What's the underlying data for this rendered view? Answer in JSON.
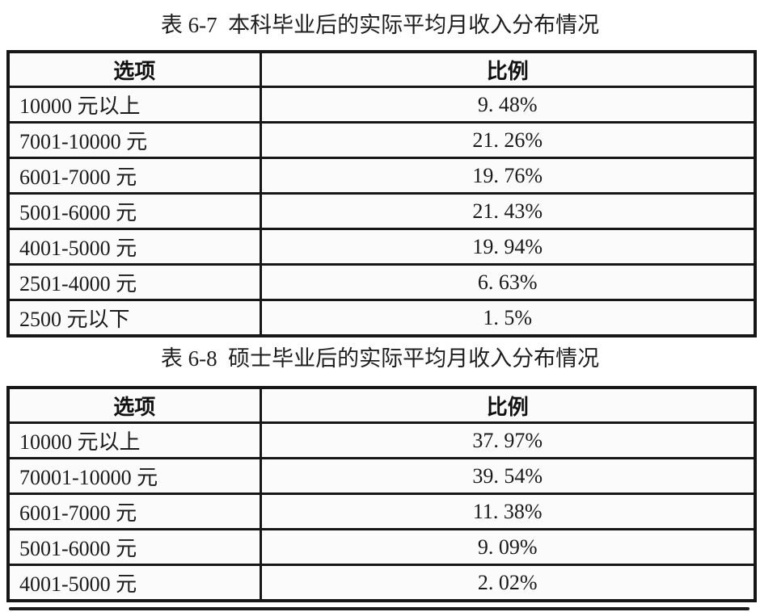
{
  "page": {
    "background": "#ffffff",
    "text_color": "#1a1a1a",
    "border_color": "#161616"
  },
  "tables": [
    {
      "title": "表 6-7  本科毕业后的实际平均月收入分布情况",
      "headers": {
        "option": "选项",
        "ratio": "比例"
      },
      "rows": [
        {
          "option": "10000 元以上",
          "ratio": "9. 48%"
        },
        {
          "option": "7001-10000 元",
          "ratio": "21. 26%"
        },
        {
          "option": "6001-7000 元",
          "ratio": "19. 76%"
        },
        {
          "option": "5001-6000 元",
          "ratio": "21. 43%"
        },
        {
          "option": "4001-5000 元",
          "ratio": "19. 94%"
        },
        {
          "option": "2501-4000 元",
          "ratio": "6. 63%"
        },
        {
          "option": "2500 元以下",
          "ratio": "1. 5%"
        }
      ]
    },
    {
      "title": "表 6-8  硕士毕业后的实际平均月收入分布情况",
      "headers": {
        "option": "选项",
        "ratio": "比例"
      },
      "rows": [
        {
          "option": "10000 元以上",
          "ratio": "37. 97%"
        },
        {
          "option": "70001-10000 元",
          "ratio": "39. 54%"
        },
        {
          "option": "6001-7000 元",
          "ratio": "11. 38%"
        },
        {
          "option": "5001-6000 元",
          "ratio": "9. 09%"
        },
        {
          "option": "4001-5000 元",
          "ratio": "2. 02%"
        }
      ]
    }
  ]
}
